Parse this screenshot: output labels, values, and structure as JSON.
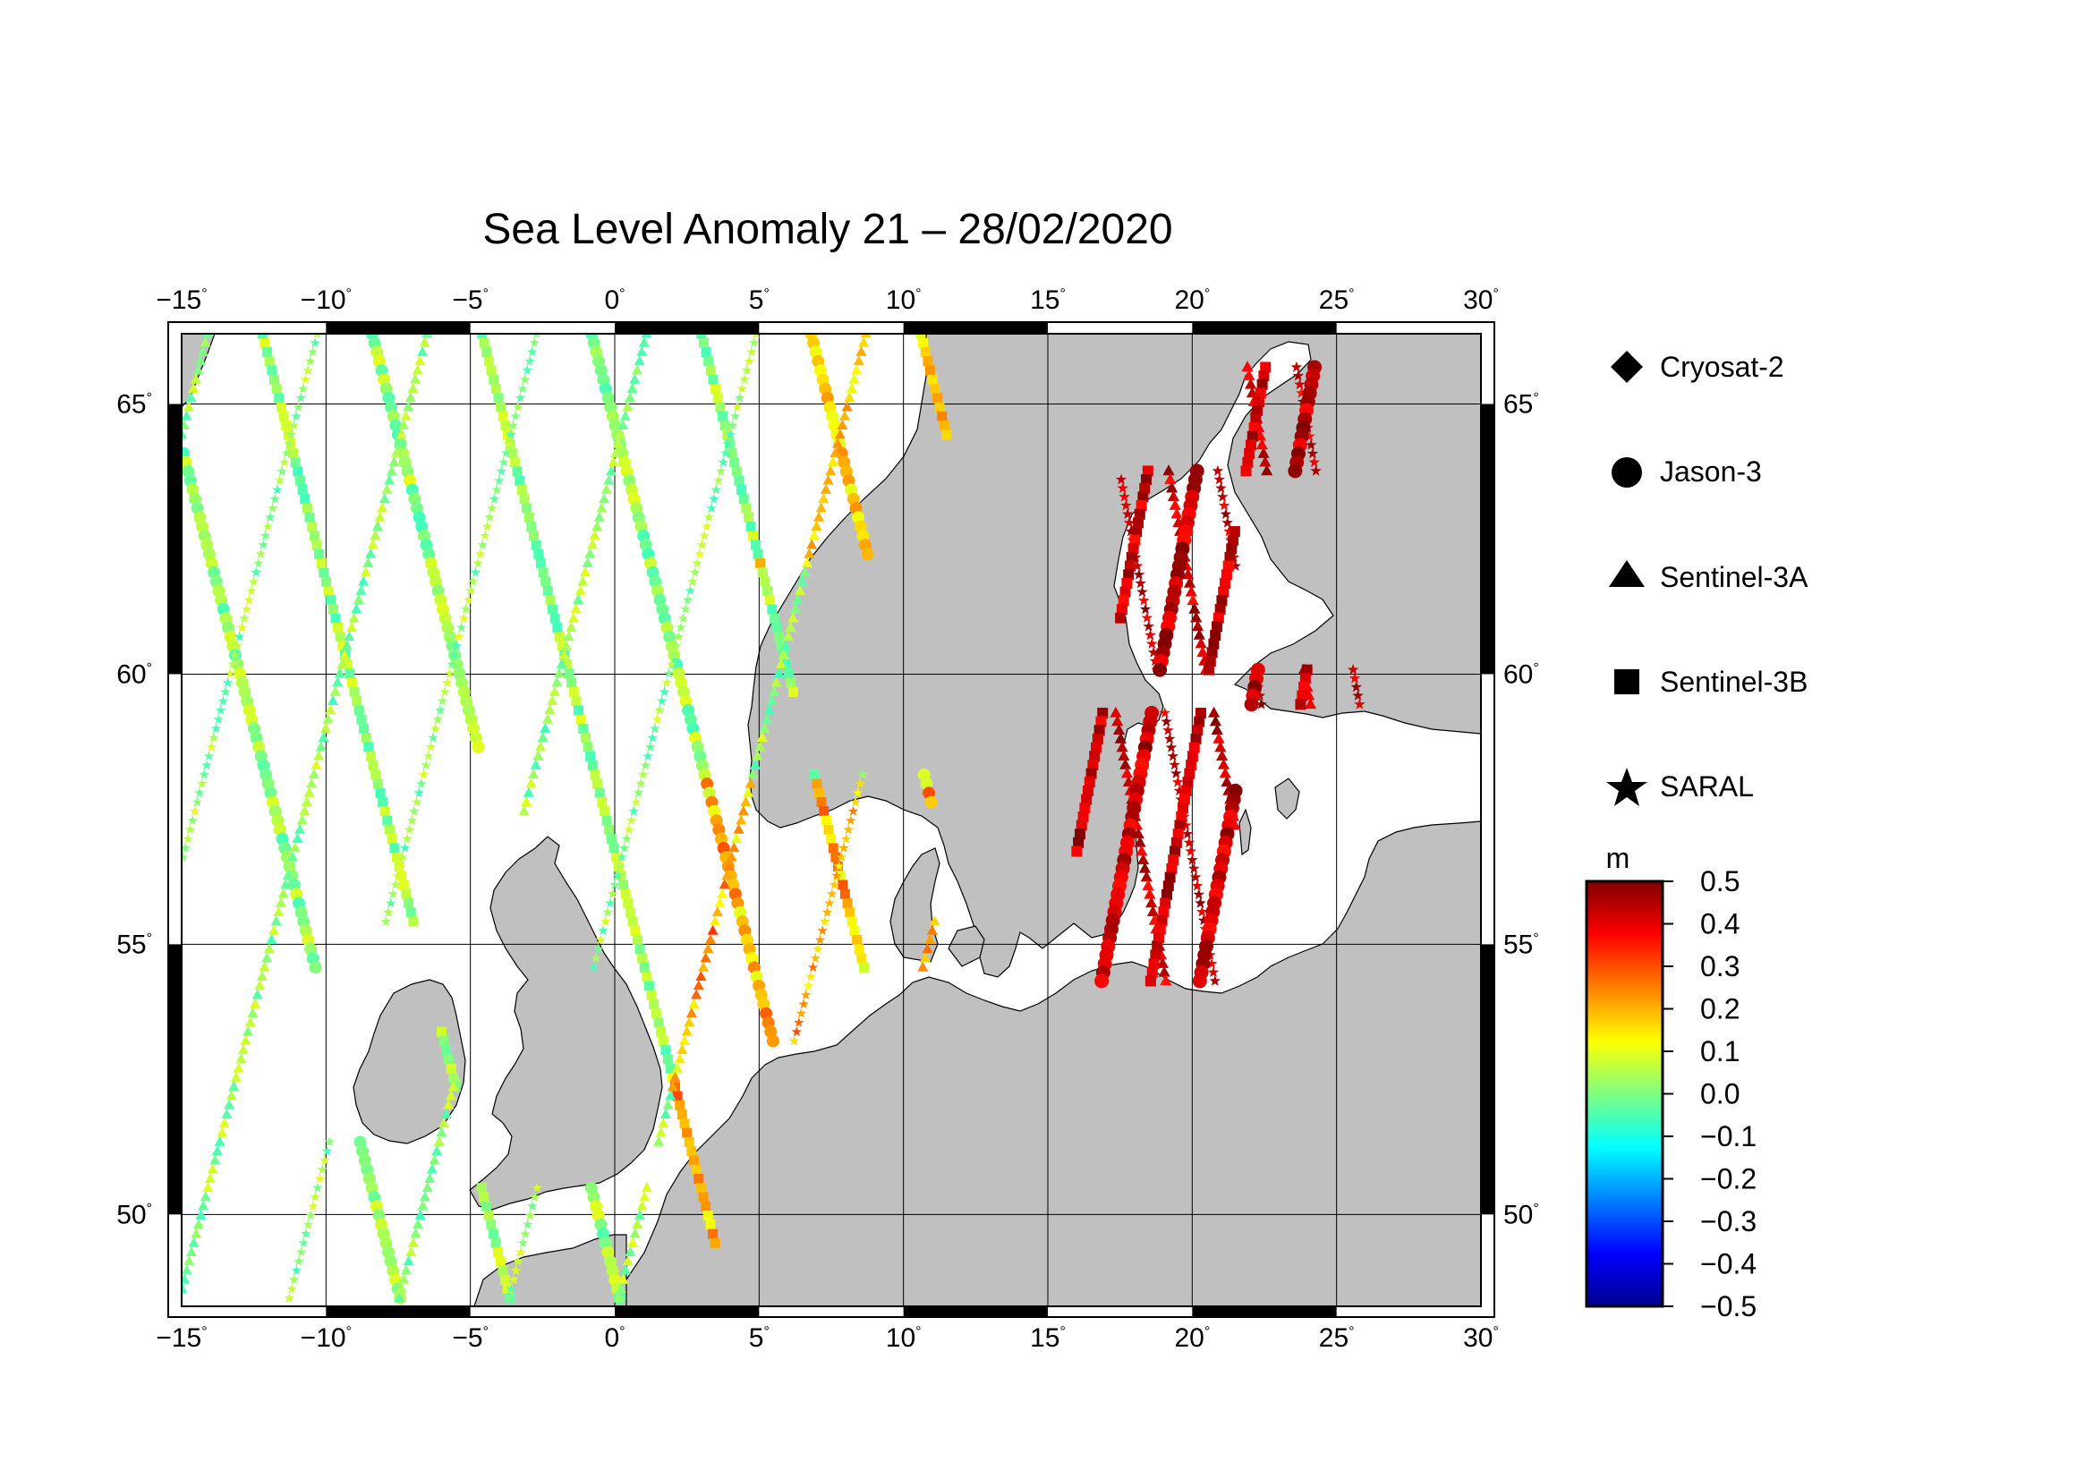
{
  "title": "Sea Level Anomaly 21 – 28/02/2020",
  "map": {
    "lon_range": [
      -15,
      30
    ],
    "lat_range": [
      48.3,
      66.3
    ],
    "lon_ticks": [
      -15,
      -10,
      -5,
      0,
      5,
      10,
      15,
      20,
      25,
      30
    ],
    "lat_ticks": [
      50,
      55,
      60,
      65
    ],
    "lon_tick_labels": [
      "−15",
      "−10",
      "−5",
      "0",
      "5",
      "10",
      "15",
      "20",
      "25",
      "30"
    ],
    "lat_tick_labels": [
      "50",
      "55",
      "60",
      "65"
    ],
    "degree_symbol": "°",
    "land_color": "#c0c0c0",
    "sea_color": "#ffffff"
  },
  "legend": {
    "items": [
      {
        "label": "Cryosat-2",
        "symbol": "diamond"
      },
      {
        "label": "Jason-3",
        "symbol": "circle"
      },
      {
        "label": "Sentinel-3A",
        "symbol": "triangle"
      },
      {
        "label": "Sentinel-3B",
        "symbol": "square"
      },
      {
        "label": "SARAL",
        "symbol": "star"
      }
    ]
  },
  "colorbar": {
    "unit": "m",
    "ticks": [
      "0.5",
      "0.4",
      "0.3",
      "0.2",
      "0.1",
      "0.0",
      "−0.1",
      "−0.2",
      "−0.3",
      "−0.4",
      "−0.5"
    ],
    "min": -0.5,
    "max": 0.5,
    "colors": [
      "#00008f",
      "#0000ff",
      "#0080ff",
      "#00ffff",
      "#80ff80",
      "#ffff00",
      "#ff8000",
      "#ff0000",
      "#800000"
    ]
  }
}
